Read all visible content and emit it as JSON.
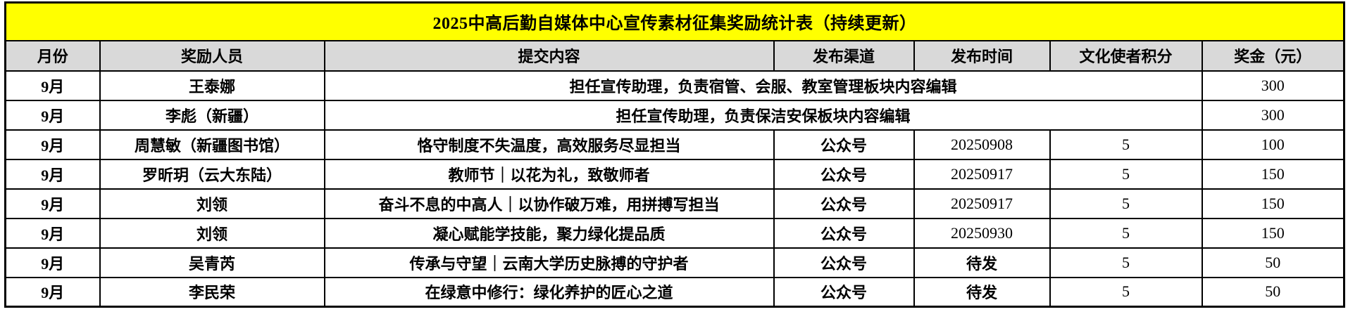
{
  "title": "2025中高后勤自媒体中心宣传素材征集奖励统计表（持续更新）",
  "colors": {
    "title_bg": "#FFFF00",
    "header_bg": "#D9D9D9",
    "cell_bg": "#FFFFFF",
    "border": "#000000",
    "text": "#000000"
  },
  "table": {
    "headers": [
      "月份",
      "奖励人员",
      "提交内容",
      "发布渠道",
      "发布时间",
      "文化使者积分",
      "奖金（元）"
    ],
    "rows": [
      {
        "month": "9月",
        "person": "王泰娜",
        "content": "担任宣传助理，负责宿管、会服、教室管理板块内容编辑",
        "merged": true,
        "channel": "",
        "date": "",
        "points": "",
        "bonus": "300"
      },
      {
        "month": "9月",
        "person": "李彪（新疆）",
        "content": "担任宣传助理，负责保洁安保板块内容编辑",
        "merged": true,
        "channel": "",
        "date": "",
        "points": "",
        "bonus": "300"
      },
      {
        "month": "9月",
        "person": "周慧敏（新疆图书馆）",
        "content": "恪守制度不失温度，高效服务尽显担当",
        "merged": false,
        "channel": "公众号",
        "date": "20250908",
        "points": "5",
        "bonus": "100"
      },
      {
        "month": "9月",
        "person": "罗昕玥（云大东陆）",
        "content": "教师节｜以花为礼，致敬师者",
        "merged": false,
        "channel": "公众号",
        "date": "20250917",
        "points": "5",
        "bonus": "150"
      },
      {
        "month": "9月",
        "person": "刘领",
        "content": "奋斗不息的中高人｜以协作破万难，用拼搏写担当",
        "merged": false,
        "channel": "公众号",
        "date": "20250917",
        "points": "5",
        "bonus": "150"
      },
      {
        "month": "9月",
        "person": "刘领",
        "content": "凝心赋能学技能，聚力绿化提品质",
        "merged": false,
        "channel": "公众号",
        "date": "20250930",
        "points": "5",
        "bonus": "150"
      },
      {
        "month": "9月",
        "person": "吴青芮",
        "content": "传承与守望｜云南大学历史脉搏的守护者",
        "merged": false,
        "channel": "公众号",
        "date": "待发",
        "points": "5",
        "bonus": "50"
      },
      {
        "month": "9月",
        "person": "李民荣",
        "content": "在绿意中修行：绿化养护的匠心之道",
        "merged": false,
        "channel": "公众号",
        "date": "待发",
        "points": "5",
        "bonus": "50"
      }
    ]
  }
}
